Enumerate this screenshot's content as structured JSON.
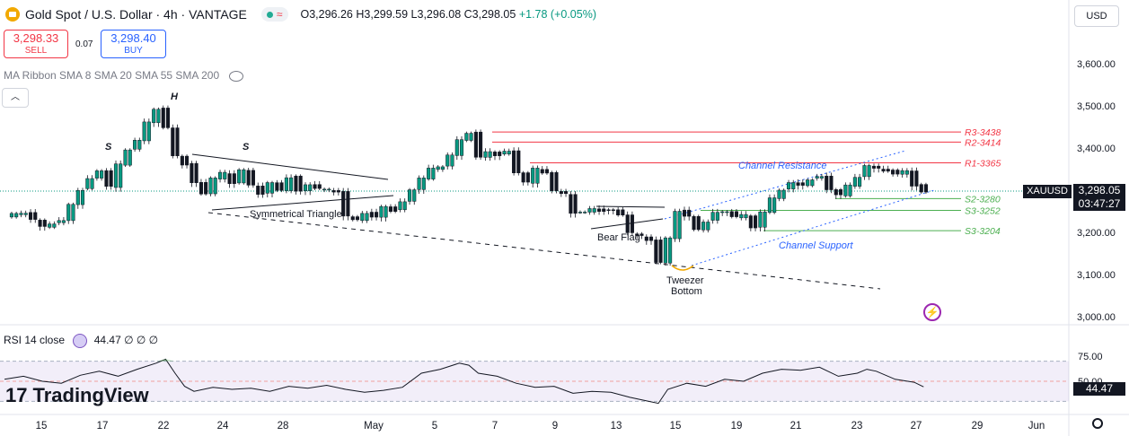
{
  "header": {
    "title": "Gold Spot / U.S. Dollar · 4h · VANTAGE",
    "ohlc_open": "O3,296.26",
    "ohlc_high": "H3,299.59",
    "ohlc_low": "L3,296.08",
    "ohlc_close": "C3,298.05",
    "ohlc_change": "+1.78 (+0.05%)",
    "status_icon": "wave-icon"
  },
  "trade": {
    "sell_price": "3,298.33",
    "sell_label": "SELL",
    "spread": "0.07",
    "buy_price": "3,298.40",
    "buy_label": "BUY"
  },
  "indicator": {
    "ma_label": "MA Ribbon SMA 8 SMA 20 SMA 55 SMA 200",
    "rsi_label": "RSI 14 close",
    "rsi_value": "44.47",
    "rsi_extra": "∅ ∅ ∅",
    "rsi_tag": "44.47"
  },
  "currency": "USD",
  "symbol_tag": "XAUUSD",
  "price_tag": "3,298.05",
  "countdown": "03:47:27",
  "brand": "TradingView",
  "colors": {
    "bull": "#089981",
    "resistance": "#f23645",
    "support": "#4caf50",
    "channel": "#2962ff",
    "rsi": "#7e57c2"
  },
  "chart_data": {
    "type": "candlestick",
    "symbol": "XAUUSD",
    "timeframe": "4h",
    "ylim": [
      3000,
      3650
    ],
    "price_ticks": [
      "3,600.00",
      "3,500.00",
      "3,400.00",
      "3,300.00",
      "3,200.00",
      "3,100.00",
      "3,000.00"
    ],
    "price_tick_values": [
      3600,
      3500,
      3400,
      3300,
      3200,
      3100,
      3000
    ],
    "x_ticks": [
      "15",
      "17",
      "22",
      "24",
      "28",
      "May",
      "5",
      "7",
      "9",
      "13",
      "15",
      "19",
      "21",
      "23",
      "27",
      "29",
      "Jun"
    ],
    "close_path": [
      [
        0,
        3240
      ],
      [
        2,
        3245
      ],
      [
        3,
        3232
      ],
      [
        4,
        3212
      ],
      [
        5,
        3220
      ],
      [
        6,
        3230
      ],
      [
        7,
        3265
      ],
      [
        8,
        3300
      ],
      [
        9,
        3330
      ],
      [
        10,
        3345
      ],
      [
        11,
        3310
      ],
      [
        12,
        3360
      ],
      [
        13,
        3395
      ],
      [
        14,
        3420
      ],
      [
        15,
        3460
      ],
      [
        16,
        3492
      ],
      [
        17,
        3450
      ],
      [
        18,
        3380
      ],
      [
        19,
        3360
      ],
      [
        20,
        3320
      ],
      [
        21,
        3290
      ],
      [
        22,
        3330
      ],
      [
        23,
        3340
      ],
      [
        24,
        3315
      ],
      [
        25,
        3350
      ],
      [
        26,
        3310
      ],
      [
        27,
        3290
      ],
      [
        28,
        3320
      ],
      [
        29,
        3298
      ],
      [
        30,
        3330
      ],
      [
        31,
        3300
      ],
      [
        32,
        3312
      ],
      [
        33,
        3305
      ],
      [
        34,
        3300
      ],
      [
        35,
        3295
      ],
      [
        36,
        3240
      ],
      [
        37,
        3228
      ],
      [
        38,
        3245
      ],
      [
        39,
        3238
      ],
      [
        40,
        3260
      ],
      [
        41,
        3250
      ],
      [
        42,
        3275
      ],
      [
        43,
        3300
      ],
      [
        44,
        3330
      ],
      [
        45,
        3350
      ],
      [
        46,
        3355
      ],
      [
        47,
        3385
      ],
      [
        48,
        3418
      ],
      [
        49,
        3435
      ],
      [
        50,
        3380
      ],
      [
        51,
        3390
      ],
      [
        52,
        3382
      ],
      [
        53,
        3395
      ],
      [
        54,
        3340
      ],
      [
        55,
        3320
      ],
      [
        56,
        3350
      ],
      [
        57,
        3340
      ],
      [
        58,
        3300
      ],
      [
        59,
        3290
      ],
      [
        60,
        3245
      ],
      [
        61,
        3250
      ],
      [
        62,
        3255
      ],
      [
        63,
        3250
      ],
      [
        64,
        3255
      ],
      [
        65,
        3240
      ],
      [
        66,
        3200
      ],
      [
        67,
        3190
      ],
      [
        68,
        3180
      ],
      [
        69,
        3130
      ],
      [
        70,
        3185
      ],
      [
        71,
        3250
      ],
      [
        72,
        3240
      ],
      [
        73,
        3205
      ],
      [
        74,
        3225
      ],
      [
        75,
        3250
      ],
      [
        76,
        3248
      ],
      [
        77,
        3238
      ],
      [
        78,
        3240
      ],
      [
        79,
        3210
      ],
      [
        80,
        3250
      ],
      [
        81,
        3280
      ],
      [
        82,
        3300
      ],
      [
        83,
        3320
      ],
      [
        84,
        3310
      ],
      [
        85,
        3325
      ],
      [
        86,
        3335
      ],
      [
        87,
        3300
      ],
      [
        88,
        3290
      ],
      [
        89,
        3310
      ],
      [
        90,
        3330
      ],
      [
        91,
        3360
      ],
      [
        92,
        3350
      ],
      [
        93,
        3345
      ],
      [
        94,
        3340
      ],
      [
        95,
        3345
      ],
      [
        96,
        3310
      ],
      [
        97,
        3298
      ]
    ],
    "resistance": [
      {
        "label": "R3-3438",
        "value": 3438
      },
      {
        "label": "R2-3414",
        "value": 3414
      },
      {
        "label": "R1-3365",
        "value": 3365
      }
    ],
    "support": [
      {
        "label": "S2-3280",
        "value": 3280
      },
      {
        "label": "S3-3252",
        "value": 3252
      },
      {
        "label": "S3-3204",
        "value": 3204
      }
    ],
    "annotations": [
      "H",
      "S",
      "S",
      "Symmetrical Triangle",
      "Bear Flag",
      "Tweezer",
      "Bottom",
      "Channel Resistance",
      "Channel Support"
    ],
    "rsi": {
      "ylim": [
        0,
        100
      ],
      "levels": [
        70,
        50,
        30
      ],
      "level_ticks": [
        "75.00",
        "50.00"
      ],
      "last": 44.47,
      "values": [
        [
          0,
          52
        ],
        [
          2,
          55
        ],
        [
          4,
          50
        ],
        [
          6,
          48
        ],
        [
          8,
          56
        ],
        [
          10,
          60
        ],
        [
          12,
          55
        ],
        [
          14,
          62
        ],
        [
          16,
          68
        ],
        [
          17,
          72
        ],
        [
          18,
          58
        ],
        [
          19,
          45
        ],
        [
          20,
          40
        ],
        [
          22,
          44
        ],
        [
          24,
          42
        ],
        [
          26,
          43
        ],
        [
          28,
          40
        ],
        [
          30,
          45
        ],
        [
          32,
          43
        ],
        [
          34,
          46
        ],
        [
          36,
          42
        ],
        [
          38,
          39
        ],
        [
          40,
          41
        ],
        [
          42,
          44
        ],
        [
          44,
          58
        ],
        [
          46,
          62
        ],
        [
          48,
          68
        ],
        [
          49,
          66
        ],
        [
          50,
          58
        ],
        [
          52,
          55
        ],
        [
          54,
          48
        ],
        [
          56,
          44
        ],
        [
          58,
          45
        ],
        [
          60,
          38
        ],
        [
          62,
          40
        ],
        [
          64,
          39
        ],
        [
          66,
          34
        ],
        [
          68,
          30
        ],
        [
          69,
          28
        ],
        [
          70,
          42
        ],
        [
          72,
          48
        ],
        [
          74,
          45
        ],
        [
          76,
          52
        ],
        [
          78,
          50
        ],
        [
          80,
          58
        ],
        [
          82,
          62
        ],
        [
          84,
          61
        ],
        [
          86,
          64
        ],
        [
          88,
          55
        ],
        [
          90,
          58
        ],
        [
          91,
          62
        ],
        [
          92,
          60
        ],
        [
          94,
          52
        ],
        [
          96,
          49
        ],
        [
          97,
          44.47
        ]
      ]
    }
  }
}
